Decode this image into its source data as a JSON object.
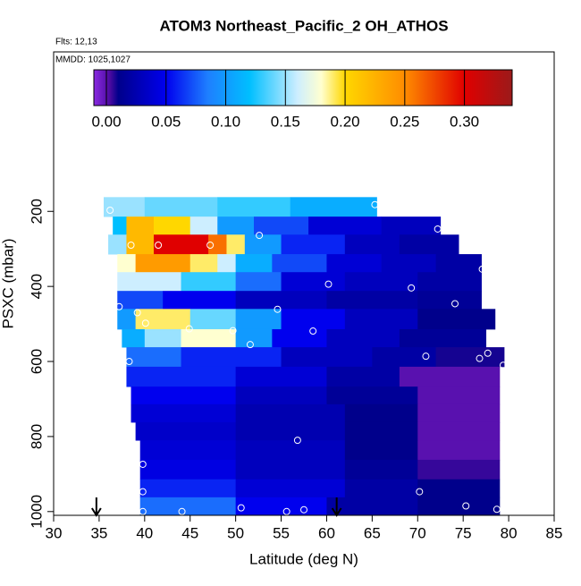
{
  "chart_data": {
    "type": "heatmap",
    "title": "ATOM3 Northeast_Pacific_2 OH_ATHOS",
    "flights": "Flts: 12,13",
    "dates": "MMDD: 1025,1027",
    "xlabel": "Latitude (deg N)",
    "ylabel": "PSXC (mbar)",
    "xlim": [
      30,
      85
    ],
    "ylim": [
      1010,
      -225
    ],
    "xticks": [
      30,
      35,
      40,
      45,
      50,
      55,
      60,
      65,
      70,
      75,
      80,
      85
    ],
    "yticks": [
      200,
      400,
      600,
      800,
      1000
    ],
    "colorbar": {
      "lim": [
        -0.0105,
        0.34
      ],
      "ticks": [
        {
          "value": 0,
          "label": "0.00"
        },
        0.05,
        {
          "value": 0.1,
          "label": "0.10"
        },
        0.15,
        {
          "value": 0.2,
          "label": "0.20"
        },
        0.25,
        {
          "value": 0.3,
          "label": "0.30"
        }
      ],
      "colormap": [
        {
          "value": -0.0105,
          "color": "#8a2be2"
        },
        {
          "value": 0.003,
          "color": "#4b0aa0"
        },
        {
          "value": 0.01,
          "color": "#00008b"
        },
        {
          "value": 0.05,
          "color": "#0000ee"
        },
        {
          "value": 0.085,
          "color": "#1e7fff"
        },
        {
          "value": 0.12,
          "color": "#00bfff"
        },
        {
          "value": 0.16,
          "color": "#cdeeff"
        },
        {
          "value": 0.18,
          "color": "#ffffd0"
        },
        {
          "value": 0.2,
          "color": "#ffd700"
        },
        {
          "value": 0.25,
          "color": "#ff8c00"
        },
        {
          "value": 0.3,
          "color": "#e00000"
        },
        {
          "value": 0.34,
          "color": "#9b1a1a"
        }
      ]
    },
    "layers": [
      {
        "p": [
          162,
          214
        ],
        "lat": [
          35.5,
          40,
          48,
          56,
          65.5
        ],
        "values": [
          0.15,
          0.14,
          0.13,
          0.11
        ]
      },
      {
        "p": [
          214,
          262
        ],
        "lat": [
          36.5,
          38,
          41,
          45,
          48,
          52,
          58,
          66,
          72.5
        ],
        "values": [
          0.12,
          0.22,
          0.2,
          0.16,
          0.1,
          0.07,
          0.04,
          0.03
        ]
      },
      {
        "p": [
          262,
          314
        ],
        "lat": [
          36,
          38,
          41,
          47,
          49,
          51,
          55,
          62,
          68,
          74.5
        ],
        "values": [
          0.15,
          0.22,
          0.3,
          0.26,
          0.19,
          0.1,
          0.06,
          0.03,
          0.02
        ]
      },
      {
        "p": [
          314,
          362
        ],
        "lat": [
          37,
          39,
          45,
          48,
          50,
          54,
          60,
          66,
          72,
          77
        ],
        "values": [
          0.18,
          0.24,
          0.19,
          0.16,
          0.11,
          0.07,
          0.04,
          0.03,
          0.02
        ]
      },
      {
        "p": [
          362,
          412
        ],
        "lat": [
          37,
          44,
          50,
          55,
          62,
          70,
          77
        ],
        "values": [
          0.16,
          0.13,
          0.08,
          0.04,
          0.03,
          0.02
        ]
      },
      {
        "p": [
          412,
          460
        ],
        "lat": [
          37,
          42,
          50,
          60,
          70,
          77
        ],
        "values": [
          0.07,
          0.05,
          0.03,
          0.02,
          0.015
        ]
      },
      {
        "p": [
          460,
          514
        ],
        "lat": [
          37,
          39,
          45,
          50,
          55,
          62,
          70,
          78.5
        ],
        "values": [
          0.1,
          0.19,
          0.14,
          0.1,
          0.05,
          0.03,
          0.01
        ]
      },
      {
        "p": [
          514,
          562
        ],
        "lat": [
          37.5,
          40,
          44,
          50,
          54,
          60,
          68,
          77.5
        ],
        "values": [
          0.11,
          0.15,
          0.18,
          0.1,
          0.05,
          0.03,
          0.015
        ]
      },
      {
        "p": [
          562,
          614
        ],
        "lat": [
          38,
          44,
          55,
          65,
          72,
          79.5
        ],
        "values": [
          0.08,
          0.06,
          0.03,
          0.02,
          0.008
        ]
      },
      {
        "p": [
          614,
          667
        ],
        "lat": [
          38,
          50,
          60,
          68,
          79
        ],
        "values": [
          0.06,
          0.04,
          0.02,
          0.0
        ]
      },
      {
        "p": [
          667,
          714
        ],
        "lat": [
          38.5,
          50,
          60,
          70,
          79
        ],
        "values": [
          0.05,
          0.03,
          0.015,
          0.0
        ]
      },
      {
        "p": [
          714,
          762
        ],
        "lat": [
          38.5,
          50,
          62,
          70,
          79
        ],
        "values": [
          0.04,
          0.025,
          0.01,
          0.0
        ]
      },
      {
        "p": [
          762,
          810
        ],
        "lat": [
          39,
          50,
          62,
          70,
          79
        ],
        "values": [
          0.035,
          0.025,
          0.01,
          0.0
        ]
      },
      {
        "p": [
          810,
          862
        ],
        "lat": [
          39.5,
          50,
          62,
          70,
          79
        ],
        "values": [
          0.04,
          0.03,
          0.01,
          0.0
        ]
      },
      {
        "p": [
          862,
          914
        ],
        "lat": [
          39.5,
          50,
          62,
          70,
          79
        ],
        "values": [
          0.045,
          0.03,
          0.015,
          0.005
        ]
      },
      {
        "p": [
          914,
          962
        ],
        "lat": [
          39.5,
          50,
          62,
          70,
          79
        ],
        "values": [
          0.06,
          0.04,
          0.02,
          0.01
        ]
      },
      {
        "p": [
          962,
          1010
        ],
        "lat": [
          39.5,
          50,
          60,
          70,
          79
        ],
        "values": [
          0.08,
          0.05,
          0.02,
          0.01
        ]
      }
    ],
    "points": {
      "x": [
        36.2,
        65.3,
        38.5,
        41.5,
        47.2,
        52.6,
        72.2,
        77.1,
        60.2,
        69.3,
        74.1,
        37.2,
        39.2,
        54.6,
        40.1,
        44.9,
        49.7,
        58.5,
        51.6,
        70.9,
        76.8,
        77.7,
        38.3,
        79.4,
        56.8,
        39.8,
        39.8,
        70.2,
        39.8,
        44.1,
        50.6,
        55.6,
        57.5,
        75.3,
        78.7
      ],
      "y": [
        197,
        182,
        290,
        290,
        290,
        264,
        247,
        354,
        394,
        404,
        446,
        454,
        470,
        461,
        498,
        513,
        518,
        519,
        555,
        586,
        592,
        578,
        600,
        610,
        810,
        874,
        947,
        947,
        1000,
        1000,
        990,
        1000,
        995,
        985,
        994
      ]
    },
    "arrows": [
      34.7,
      61.1
    ]
  }
}
